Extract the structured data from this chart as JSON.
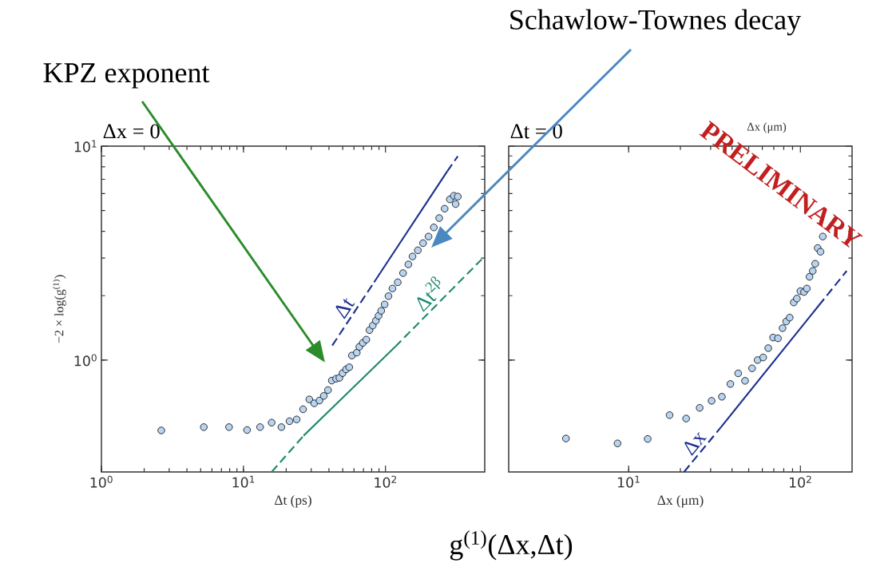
{
  "chart_data": [
    {
      "type": "scatter",
      "title": "Δx = 0",
      "xlabel": "Δt (ps)",
      "ylabel": "−2 × log(g$^{(1)}$)",
      "log": "xy",
      "xlim": [
        1,
        500
      ],
      "ylim": [
        0.3,
        10
      ],
      "xticks": [
        {
          "value": 1,
          "label": "10$^{0}$"
        },
        {
          "value": 10,
          "label": "10$^{1}$"
        },
        {
          "value": 100,
          "label": "10$^{2}$"
        }
      ],
      "yticks": [
        {
          "value": 1,
          "label": "10$^{0}$"
        },
        {
          "value": 10,
          "label": "10$^{1}$"
        }
      ],
      "series": [
        {
          "color": "#b8d4f0",
          "marker": "circle",
          "x": [
            2.64,
            5.26,
            7.92,
            10.6,
            13.1,
            15.8,
            18.5,
            21.1,
            23.7,
            26.3,
            29.1,
            31.5,
            34.3,
            36.8,
            39.4,
            41.9,
            44.9,
            47.4,
            49.9,
            52.8,
            55.6,
            58,
            62.8,
            65.5,
            69.3,
            73.3,
            77.2,
            81.4,
            85.6,
            89.4,
            93.3,
            98.6,
            105,
            112,
            122,
            133,
            145,
            155,
            169,
            184,
            201,
            219,
            239,
            261,
            284,
            303,
            323,
            312
          ],
          "values": [
            0.469,
            0.486,
            0.486,
            0.471,
            0.486,
            0.51,
            0.486,
            0.518,
            0.528,
            0.589,
            0.655,
            0.628,
            0.647,
            0.68,
            0.724,
            0.802,
            0.818,
            0.826,
            0.869,
            0.905,
            0.926,
            1.05,
            1.083,
            1.154,
            1.204,
            1.246,
            1.38,
            1.45,
            1.527,
            1.61,
            1.7,
            1.82,
            1.99,
            2.16,
            2.31,
            2.55,
            2.8,
            3.05,
            3.26,
            3.52,
            3.78,
            4.17,
            4.61,
            5.1,
            5.64,
            5.86,
            5.81,
            5.36
          ]
        },
        {
          "type": "line",
          "name": "Δt",
          "color": "#1b2f8f",
          "line_style": "dashed",
          "x": [
            42.2,
            83.1
          ],
          "values": [
            1.17,
            2.31
          ]
        },
        {
          "type": "line",
          "color": "#1b2f8f",
          "line_style": "solid",
          "x": [
            83.1,
            272
          ],
          "values": [
            2.31,
            7.62
          ]
        },
        {
          "type": "line",
          "color": "#1b2f8f",
          "line_style": "dashed",
          "x": [
            272,
            323
          ],
          "values": [
            7.62,
            8.97
          ]
        },
        {
          "type": "line",
          "color": "#1f8a70",
          "line_style": "dashed",
          "x": [
            15.8,
            26.5
          ],
          "values": [
            0.3,
            0.443
          ]
        },
        {
          "type": "line",
          "color": "#1f8a70",
          "line_style": "solid",
          "x": [
            26.5,
            117
          ],
          "values": [
            0.443,
            1.154
          ]
        },
        {
          "type": "line",
          "name": "Δt$^{2β}$",
          "color": "#1f8a70",
          "line_style": "dashed",
          "x": [
            117,
            476
          ],
          "values": [
            1.154,
            2.96
          ]
        }
      ],
      "annotations": [
        "KPZ exponent",
        "Schawlow-Townes decay",
        "g$^{(1)}$(Δx,Δt)"
      ]
    },
    {
      "type": "scatter",
      "title": "Δt = 0",
      "xlabel": "Δx (μm)",
      "log": "xy",
      "tick_labels": "x",
      "xlim": [
        2,
        200
      ],
      "ylim": [
        0.3,
        10
      ],
      "xticks": [
        {
          "value": 10,
          "label": "10$^{1}$"
        },
        {
          "value": 100,
          "label": "10$^{2}$"
        }
      ],
      "yticks": [
        1,
        10
      ],
      "series": [
        {
          "color": "#b8d4f0",
          "marker": "circle",
          "x": [
            4.31,
            8.61,
            12.9,
            17.3,
            21.6,
            25.9,
            30.4,
            34.9,
            39.1,
            43.4,
            47.6,
            52.3,
            56.3,
            60.7,
            65,
            69.3,
            74,
            78.7,
            82.7,
            86.6,
            91.5,
            95.4,
            100,
            105,
            109,
            113,
            118,
            122,
            126,
            131,
            135
          ],
          "values": [
            0.43,
            0.408,
            0.428,
            0.553,
            0.533,
            0.598,
            0.645,
            0.674,
            0.773,
            0.867,
            0.8,
            0.915,
            1.0,
            1.029,
            1.137,
            1.275,
            1.264,
            1.41,
            1.515,
            1.58,
            1.86,
            1.94,
            2.1,
            2.08,
            2.16,
            2.45,
            2.61,
            2.82,
            3.34,
            3.21,
            3.78
          ]
        },
        {
          "type": "line",
          "name": "Δx",
          "color": "#1b2f8f",
          "line_style": "dashed",
          "x": [
            21,
            34.4
          ],
          "values": [
            0.3,
            0.485
          ]
        },
        {
          "type": "line",
          "color": "#1b2f8f",
          "line_style": "solid",
          "x": [
            34.4,
            128
          ],
          "values": [
            0.485,
            1.8
          ]
        },
        {
          "type": "line",
          "color": "#1b2f8f",
          "line_style": "dashed",
          "x": [
            128,
            186
          ],
          "values": [
            1.8,
            2.61
          ]
        }
      ],
      "annotations": [
        "Δx (μm)",
        "PRELIMINARY"
      ]
    }
  ]
}
